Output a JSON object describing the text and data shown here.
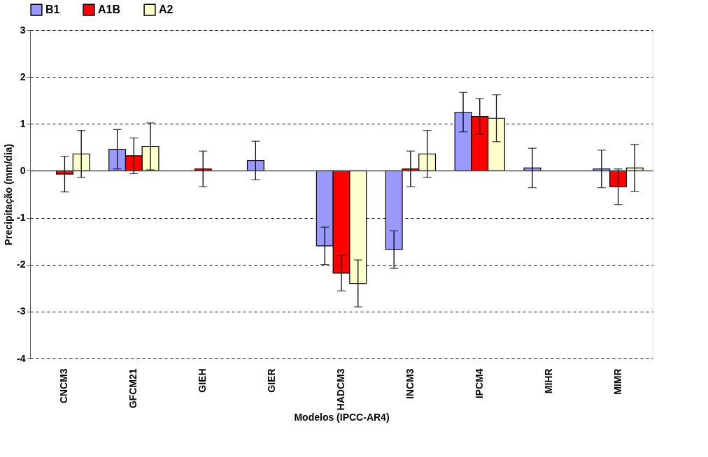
{
  "chart_data": {
    "type": "bar",
    "xlabel": "Modelos (IPCC-AR4)",
    "ylabel": "Precipitação (mm/dia)",
    "categories": [
      "CNCM3",
      "GFCM21",
      "GIEH",
      "GIER",
      "HADCM3",
      "INCM3",
      "IPCM4",
      "MIHR",
      "MIMR"
    ],
    "series": [
      {
        "name": "B1",
        "color": "#9999ff",
        "values": [
          null,
          0.46,
          null,
          0.22,
          -1.6,
          -1.68,
          1.25,
          0.06,
          0.04
        ],
        "errors": [
          null,
          0.42,
          null,
          0.41,
          0.4,
          0.4,
          0.42,
          0.42,
          0.4
        ]
      },
      {
        "name": "A1B",
        "color": "#ff0000",
        "values": [
          -0.07,
          0.32,
          0.04,
          null,
          -2.18,
          0.04,
          1.16,
          null,
          -0.34
        ],
        "errors": [
          0.38,
          0.38,
          0.38,
          null,
          0.38,
          0.38,
          0.38,
          null,
          0.38
        ]
      },
      {
        "name": "A2",
        "color": "#ffffcc",
        "values": [
          0.36,
          0.52,
          null,
          null,
          -2.4,
          0.36,
          1.12,
          null,
          0.06
        ],
        "errors": [
          0.5,
          0.5,
          null,
          null,
          0.5,
          0.5,
          0.5,
          null,
          0.5
        ]
      }
    ],
    "ylim": [
      -4,
      3
    ],
    "yticks": [
      -4,
      -3,
      -2,
      -1,
      0,
      1,
      2,
      3
    ],
    "grid": "y",
    "legend": "top",
    "ref_lines": [
      {
        "axis": "y",
        "value": 0
      }
    ]
  }
}
